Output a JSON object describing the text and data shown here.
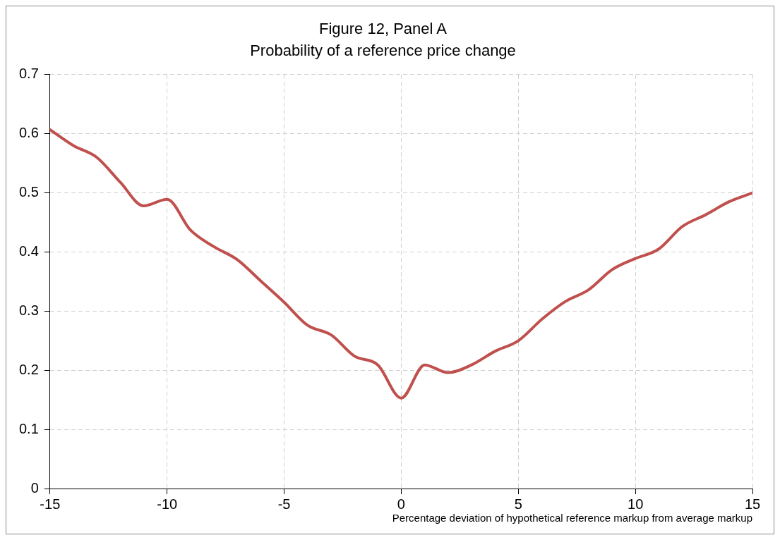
{
  "chart_data": {
    "type": "line",
    "title": "Figure 12, Panel A",
    "subtitle": "Probability of a reference price change",
    "xlabel": "Percentage deviation of hypothetical reference markup from average markup",
    "x": [
      -15,
      -14,
      -13,
      -12,
      -11,
      -10,
      -9,
      -8,
      -7,
      -6,
      -5,
      -4,
      -3,
      -2,
      -1,
      0,
      1,
      2,
      3,
      4,
      5,
      6,
      7,
      8,
      9,
      10,
      11,
      12,
      13,
      14,
      15
    ],
    "series": [
      {
        "color": "#c0504d",
        "values": [
          0.607,
          0.58,
          0.56,
          0.518,
          0.478,
          0.489,
          0.437,
          0.409,
          0.387,
          0.351,
          0.315,
          0.276,
          0.26,
          0.224,
          0.209,
          0.153,
          0.209,
          0.196,
          0.209,
          0.232,
          0.25,
          0.286,
          0.316,
          0.336,
          0.37,
          0.389,
          0.405,
          0.443,
          0.463,
          0.485,
          0.5
        ]
      }
    ],
    "xlim": [
      -15,
      15
    ],
    "xticks": [
      -15,
      -10,
      -5,
      0,
      5,
      10,
      15
    ],
    "ylim": [
      0,
      0.7
    ],
    "yticks": [
      0,
      0.1,
      0.2,
      0.3,
      0.4,
      0.5,
      0.6,
      0.7
    ],
    "grid": true,
    "legend": false,
    "marker": "none",
    "line_style": "solid"
  }
}
